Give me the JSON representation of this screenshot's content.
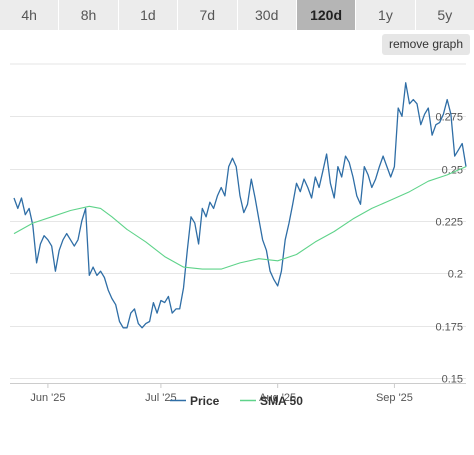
{
  "range_tabs": [
    {
      "label": "4h",
      "active": false
    },
    {
      "label": "8h",
      "active": false
    },
    {
      "label": "1d",
      "active": false
    },
    {
      "label": "7d",
      "active": false
    },
    {
      "label": "30d",
      "active": false
    },
    {
      "label": "120d",
      "active": true
    },
    {
      "label": "1y",
      "active": false
    },
    {
      "label": "5y",
      "active": false
    }
  ],
  "remove_graph_label": "remove graph",
  "colors": {
    "price": "#2f6ea6",
    "sma": "#5fd38a",
    "grid": "#e6e6e6"
  },
  "chart_data": {
    "type": "line",
    "x_axis": {
      "type": "date",
      "range": [
        "2025-05-23",
        "2025-09-20"
      ],
      "ticks": [
        {
          "date": "2025-06-01",
          "label": "Jun '25"
        },
        {
          "date": "2025-07-01",
          "label": "Jul '25"
        },
        {
          "date": "2025-08-01",
          "label": "Aug '25"
        },
        {
          "date": "2025-09-01",
          "label": "Sep '25"
        }
      ]
    },
    "y_axis": {
      "range": [
        0.15,
        0.3
      ],
      "ticks": [
        0.15,
        0.175,
        0.2,
        0.225,
        0.25,
        0.275
      ],
      "tick_labels": [
        "0.15",
        "0.175",
        "0.2",
        "0.225",
        "0.25",
        "0.275"
      ],
      "position": "right"
    },
    "grid": true,
    "legend": {
      "position": "bottom"
    },
    "series": [
      {
        "name": "Price",
        "points": [
          [
            "2025-05-23",
            0.236
          ],
          [
            "2025-05-24",
            0.231
          ],
          [
            "2025-05-25",
            0.236
          ],
          [
            "2025-05-26",
            0.228
          ],
          [
            "2025-05-27",
            0.231
          ],
          [
            "2025-05-28",
            0.223
          ],
          [
            "2025-05-29",
            0.205
          ],
          [
            "2025-05-30",
            0.214
          ],
          [
            "2025-05-31",
            0.218
          ],
          [
            "2025-06-01",
            0.216
          ],
          [
            "2025-06-02",
            0.213
          ],
          [
            "2025-06-03",
            0.201
          ],
          [
            "2025-06-04",
            0.211
          ],
          [
            "2025-06-05",
            0.216
          ],
          [
            "2025-06-06",
            0.219
          ],
          [
            "2025-06-07",
            0.216
          ],
          [
            "2025-06-08",
            0.213
          ],
          [
            "2025-06-09",
            0.216
          ],
          [
            "2025-06-10",
            0.225
          ],
          [
            "2025-06-11",
            0.231
          ],
          [
            "2025-06-12",
            0.199
          ],
          [
            "2025-06-13",
            0.203
          ],
          [
            "2025-06-14",
            0.199
          ],
          [
            "2025-06-15",
            0.201
          ],
          [
            "2025-06-16",
            0.198
          ],
          [
            "2025-06-17",
            0.192
          ],
          [
            "2025-06-18",
            0.188
          ],
          [
            "2025-06-19",
            0.185
          ],
          [
            "2025-06-20",
            0.177
          ],
          [
            "2025-06-21",
            0.174
          ],
          [
            "2025-06-22",
            0.174
          ],
          [
            "2025-06-23",
            0.181
          ],
          [
            "2025-06-24",
            0.183
          ],
          [
            "2025-06-25",
            0.176
          ],
          [
            "2025-06-26",
            0.174
          ],
          [
            "2025-06-27",
            0.176
          ],
          [
            "2025-06-28",
            0.177
          ],
          [
            "2025-06-29",
            0.186
          ],
          [
            "2025-06-30",
            0.181
          ],
          [
            "2025-07-01",
            0.187
          ],
          [
            "2025-07-02",
            0.186
          ],
          [
            "2025-07-03",
            0.189
          ],
          [
            "2025-07-04",
            0.181
          ],
          [
            "2025-07-05",
            0.183
          ],
          [
            "2025-07-06",
            0.183
          ],
          [
            "2025-07-07",
            0.193
          ],
          [
            "2025-07-08",
            0.211
          ],
          [
            "2025-07-09",
            0.227
          ],
          [
            "2025-07-10",
            0.224
          ],
          [
            "2025-07-11",
            0.214
          ],
          [
            "2025-07-12",
            0.231
          ],
          [
            "2025-07-13",
            0.227
          ],
          [
            "2025-07-14",
            0.234
          ],
          [
            "2025-07-15",
            0.231
          ],
          [
            "2025-07-16",
            0.237
          ],
          [
            "2025-07-17",
            0.241
          ],
          [
            "2025-07-18",
            0.237
          ],
          [
            "2025-07-19",
            0.251
          ],
          [
            "2025-07-20",
            0.255
          ],
          [
            "2025-07-21",
            0.251
          ],
          [
            "2025-07-22",
            0.237
          ],
          [
            "2025-07-23",
            0.229
          ],
          [
            "2025-07-24",
            0.233
          ],
          [
            "2025-07-25",
            0.245
          ],
          [
            "2025-07-26",
            0.236
          ],
          [
            "2025-07-27",
            0.226
          ],
          [
            "2025-07-28",
            0.216
          ],
          [
            "2025-07-29",
            0.211
          ],
          [
            "2025-07-30",
            0.201
          ],
          [
            "2025-07-31",
            0.197
          ],
          [
            "2025-08-01",
            0.194
          ],
          [
            "2025-08-02",
            0.201
          ],
          [
            "2025-08-03",
            0.216
          ],
          [
            "2025-08-04",
            0.224
          ],
          [
            "2025-08-05",
            0.233
          ],
          [
            "2025-08-06",
            0.243
          ],
          [
            "2025-08-07",
            0.239
          ],
          [
            "2025-08-08",
            0.245
          ],
          [
            "2025-08-09",
            0.241
          ],
          [
            "2025-08-10",
            0.236
          ],
          [
            "2025-08-11",
            0.246
          ],
          [
            "2025-08-12",
            0.241
          ],
          [
            "2025-08-13",
            0.249
          ],
          [
            "2025-08-14",
            0.257
          ],
          [
            "2025-08-15",
            0.243
          ],
          [
            "2025-08-16",
            0.236
          ],
          [
            "2025-08-17",
            0.251
          ],
          [
            "2025-08-18",
            0.246
          ],
          [
            "2025-08-19",
            0.256
          ],
          [
            "2025-08-20",
            0.253
          ],
          [
            "2025-08-21",
            0.246
          ],
          [
            "2025-08-22",
            0.237
          ],
          [
            "2025-08-23",
            0.233
          ],
          [
            "2025-08-24",
            0.251
          ],
          [
            "2025-08-25",
            0.247
          ],
          [
            "2025-08-26",
            0.241
          ],
          [
            "2025-08-27",
            0.245
          ],
          [
            "2025-08-28",
            0.251
          ],
          [
            "2025-08-29",
            0.256
          ],
          [
            "2025-08-30",
            0.251
          ],
          [
            "2025-08-31",
            0.246
          ],
          [
            "2025-09-01",
            0.251
          ],
          [
            "2025-09-02",
            0.279
          ],
          [
            "2025-09-03",
            0.275
          ],
          [
            "2025-09-04",
            0.291
          ],
          [
            "2025-09-05",
            0.281
          ],
          [
            "2025-09-06",
            0.283
          ],
          [
            "2025-09-07",
            0.281
          ],
          [
            "2025-09-08",
            0.271
          ],
          [
            "2025-09-09",
            0.276
          ],
          [
            "2025-09-10",
            0.279
          ],
          [
            "2025-09-11",
            0.266
          ],
          [
            "2025-09-12",
            0.271
          ],
          [
            "2025-09-13",
            0.272
          ],
          [
            "2025-09-14",
            0.276
          ],
          [
            "2025-09-15",
            0.283
          ],
          [
            "2025-09-16",
            0.276
          ],
          [
            "2025-09-17",
            0.256
          ],
          [
            "2025-09-18",
            0.259
          ],
          [
            "2025-09-19",
            0.262
          ],
          [
            "2025-09-20",
            0.251
          ]
        ]
      },
      {
        "name": "SMA 50",
        "points": [
          [
            "2025-05-23",
            0.219
          ],
          [
            "2025-05-28",
            0.224
          ],
          [
            "2025-06-02",
            0.227
          ],
          [
            "2025-06-07",
            0.23
          ],
          [
            "2025-06-12",
            0.232
          ],
          [
            "2025-06-15",
            0.231
          ],
          [
            "2025-06-18",
            0.227
          ],
          [
            "2025-06-22",
            0.221
          ],
          [
            "2025-06-27",
            0.215
          ],
          [
            "2025-07-02",
            0.208
          ],
          [
            "2025-07-07",
            0.203
          ],
          [
            "2025-07-12",
            0.202
          ],
          [
            "2025-07-17",
            0.202
          ],
          [
            "2025-07-22",
            0.205
          ],
          [
            "2025-07-27",
            0.207
          ],
          [
            "2025-08-01",
            0.206
          ],
          [
            "2025-08-06",
            0.209
          ],
          [
            "2025-08-11",
            0.215
          ],
          [
            "2025-08-16",
            0.22
          ],
          [
            "2025-08-21",
            0.226
          ],
          [
            "2025-08-26",
            0.231
          ],
          [
            "2025-08-31",
            0.235
          ],
          [
            "2025-09-05",
            0.239
          ],
          [
            "2025-09-10",
            0.244
          ],
          [
            "2025-09-15",
            0.247
          ],
          [
            "2025-09-20",
            0.251
          ]
        ]
      }
    ]
  }
}
